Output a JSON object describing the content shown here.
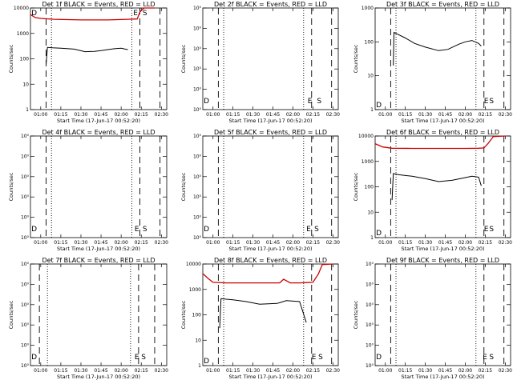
{
  "x_ticks": [
    "01:00",
    "01:15",
    "01:30",
    "01:45",
    "02:00",
    "02:15",
    "02:30"
  ],
  "xlabel": "Start Time (17-Jun-17 00:52:20)",
  "ylabel": "Counts/sec",
  "colors": {
    "events": "#000000",
    "lld": "#cc0000"
  },
  "chart_data": [
    {
      "type": "line",
      "title": "Det 1f BLACK = Events, RED = LLD",
      "x_range": [
        "00:52:20",
        "02:34:00"
      ],
      "ylim": [
        1,
        10000
      ],
      "yscale": "log",
      "y_ticks": [
        "1",
        "10",
        "100",
        "1000",
        "10000"
      ],
      "markers": [
        {
          "text": "D",
          "x": "00:53"
        },
        {
          "text": "E",
          "x": "02:09"
        },
        {
          "text": "S",
          "x": "02:16"
        }
      ],
      "dashed_lines": [
        "01:04",
        "02:14",
        "02:29"
      ],
      "dotted_lines": [
        "01:08",
        "02:08"
      ],
      "series": [
        {
          "color": "#000000",
          "x": [
            "01:04",
            "01:05",
            "01:09",
            "01:15",
            "01:25",
            "01:33",
            "01:40",
            "01:45",
            "01:50",
            "01:55",
            "02:00",
            "02:03",
            "02:05"
          ],
          "y": [
            60,
            280,
            270,
            260,
            240,
            190,
            195,
            210,
            230,
            250,
            260,
            240,
            230
          ]
        },
        {
          "color": "#cc0000",
          "x": [
            "00:52:20",
            "00:56",
            "01:00",
            "01:10",
            "01:30",
            "01:50",
            "02:05",
            "02:12",
            "02:14",
            "02:17",
            "02:20",
            "02:25"
          ],
          "y": [
            5500,
            4200,
            3900,
            3600,
            3400,
            3400,
            3600,
            3700,
            7000,
            10000,
            10000,
            10000
          ]
        }
      ]
    },
    {
      "type": "line",
      "title": "Det 2f BLACK = Events, RED = LLD",
      "x_range": [
        "00:52:20",
        "02:34:00"
      ],
      "ylim": [
        1,
        10
      ],
      "yscale": "log",
      "y_ticks": [
        "10⁰",
        "10⁰",
        "10⁰",
        "10⁰",
        "10⁰",
        "10⁰"
      ],
      "markers": [
        {
          "text": "D",
          "x": "00:53"
        },
        {
          "text": "E",
          "x": "02:11"
        },
        {
          "text": "S",
          "x": "02:18"
        }
      ],
      "dashed_lines": [
        "01:04",
        "02:14",
        "02:29"
      ],
      "dotted_lines": [
        "01:08",
        "02:08"
      ],
      "series": []
    },
    {
      "type": "line",
      "title": "Det 3f BLACK = Events, RED = LLD",
      "x_range": [
        "00:52:20",
        "02:34:00"
      ],
      "ylim": [
        1,
        1000
      ],
      "yscale": "log",
      "y_ticks": [
        "1",
        "10",
        "100",
        "1000"
      ],
      "markers": [
        {
          "text": "D",
          "x": "00:53"
        },
        {
          "text": "E",
          "x": "02:14"
        },
        {
          "text": "S",
          "x": "02:18"
        }
      ],
      "dashed_lines": [
        "01:04",
        "02:14",
        "02:29"
      ],
      "dotted_lines": [
        "01:08",
        "02:08"
      ],
      "series": [
        {
          "color": "#000000",
          "x": [
            "01:06",
            "01:06:30",
            "01:09",
            "01:15",
            "01:22",
            "01:30",
            "01:40",
            "01:47",
            "01:55",
            "02:00",
            "02:05",
            "02:10",
            "02:12"
          ],
          "y": [
            20,
            190,
            170,
            130,
            90,
            70,
            55,
            60,
            85,
            100,
            110,
            90,
            75
          ]
        }
      ]
    },
    {
      "type": "line",
      "title": "Det 4f BLACK = Events, RED = LLD",
      "x_range": [
        "00:52:20",
        "02:34:00"
      ],
      "ylim": [
        1,
        10
      ],
      "yscale": "log",
      "y_ticks": [
        "10⁰",
        "10⁰",
        "10⁰",
        "10⁰",
        "10⁰",
        "10⁰"
      ],
      "markers": [
        {
          "text": "D",
          "x": "00:53"
        },
        {
          "text": "E",
          "x": "02:10"
        },
        {
          "text": "S",
          "x": "02:16"
        }
      ],
      "dashed_lines": [
        "01:04",
        "02:14",
        "02:29"
      ],
      "dotted_lines": [
        "01:08",
        "02:08"
      ],
      "series": []
    },
    {
      "type": "line",
      "title": "Det 5f BLACK = Events, RED = LLD",
      "x_range": [
        "00:52:20",
        "02:34:00"
      ],
      "ylim": [
        1,
        10
      ],
      "yscale": "log",
      "y_ticks": [
        "10⁰",
        "10⁰",
        "10⁰",
        "10⁰",
        "10⁰",
        "10⁰"
      ],
      "markers": [
        {
          "text": "D",
          "x": "00:53"
        },
        {
          "text": "E",
          "x": "02:10"
        },
        {
          "text": "S",
          "x": "02:16"
        }
      ],
      "dashed_lines": [
        "01:04",
        "02:14",
        "02:29"
      ],
      "dotted_lines": [
        "01:08",
        "02:08"
      ],
      "series": []
    },
    {
      "type": "line",
      "title": "Det 6f BLACK = Events, RED = LLD",
      "x_range": [
        "00:52:20",
        "02:34:00"
      ],
      "ylim": [
        1,
        10000
      ],
      "yscale": "log",
      "y_ticks": [
        "1",
        "10",
        "100",
        "1000",
        "10000"
      ],
      "markers": [
        {
          "text": "D",
          "x": "00:53"
        },
        {
          "text": "E",
          "x": "02:14"
        },
        {
          "text": "S",
          "x": "02:18"
        }
      ],
      "dashed_lines": [
        "01:04",
        "02:14",
        "02:29"
      ],
      "dotted_lines": [
        "01:08",
        "02:08"
      ],
      "series": [
        {
          "color": "#000000",
          "x": [
            "01:05",
            "01:06",
            "01:10",
            "01:20",
            "01:30",
            "01:40",
            "01:50",
            "02:00",
            "02:05",
            "02:10",
            "02:12"
          ],
          "y": [
            30,
            330,
            300,
            260,
            210,
            160,
            180,
            230,
            260,
            240,
            110
          ]
        },
        {
          "color": "#cc0000",
          "x": [
            "00:52:20",
            "00:58",
            "01:05",
            "01:20",
            "01:40",
            "02:00",
            "02:10",
            "02:14",
            "02:17",
            "02:21",
            "02:30"
          ],
          "y": [
            5000,
            3700,
            3300,
            3250,
            3250,
            3250,
            3300,
            3400,
            5000,
            9500,
            10000
          ]
        }
      ]
    },
    {
      "type": "line",
      "title": "Det 7f BLACK = Events, RED = LLD",
      "x_range": [
        "00:52:20",
        "02:34:00"
      ],
      "ylim": [
        1,
        10
      ],
      "yscale": "log",
      "y_ticks": [
        "10⁰",
        "10⁰",
        "10⁰",
        "10⁰",
        "10⁰",
        "10⁰"
      ],
      "markers": [
        {
          "text": "D",
          "x": "00:53"
        },
        {
          "text": "E",
          "x": "02:10"
        },
        {
          "text": "S",
          "x": "02:15"
        }
      ],
      "dashed_lines": [
        "00:59",
        "02:13",
        "02:25"
      ],
      "dotted_lines": [
        "01:05",
        "02:07"
      ],
      "series": []
    },
    {
      "type": "line",
      "title": "Det 8f BLACK = Events, RED = LLD",
      "x_range": [
        "00:52:20",
        "02:34:00"
      ],
      "ylim": [
        1,
        10000
      ],
      "yscale": "log",
      "y_ticks": [
        "1",
        "10",
        "100",
        "1000",
        "10000"
      ],
      "markers": [
        {
          "text": "D",
          "x": "00:53"
        },
        {
          "text": "E",
          "x": "02:14"
        },
        {
          "text": "S",
          "x": "02:19"
        }
      ],
      "dashed_lines": [
        "01:04",
        "02:14",
        "02:29"
      ],
      "dotted_lines": [
        "01:08",
        "02:08"
      ],
      "series": [
        {
          "color": "#000000",
          "x": [
            "01:05",
            "01:06",
            "01:15",
            "01:25",
            "01:35",
            "01:48",
            "01:50",
            "01:55",
            "02:05",
            "02:10"
          ],
          "y": [
            30,
            430,
            390,
            330,
            260,
            280,
            300,
            360,
            330,
            50
          ]
        },
        {
          "color": "#cc0000",
          "x": [
            "00:52:20",
            "00:56",
            "01:00",
            "01:10",
            "01:50",
            "01:53",
            "01:58",
            "02:05",
            "02:15",
            "02:19",
            "02:22",
            "02:30"
          ],
          "y": [
            4200,
            2800,
            1900,
            1800,
            1800,
            2500,
            1800,
            1800,
            1900,
            4000,
            9500,
            10000
          ]
        }
      ]
    },
    {
      "type": "line",
      "title": "Det 9f BLACK = Events, RED = LLD",
      "x_range": [
        "00:52:20",
        "02:34:00"
      ],
      "ylim": [
        1,
        10
      ],
      "yscale": "log",
      "y_ticks": [
        "10⁰",
        "10⁰",
        "10⁰",
        "10⁰",
        "10⁰",
        "10⁰"
      ],
      "markers": [
        {
          "text": "D",
          "x": "00:53"
        },
        {
          "text": "E",
          "x": "02:13"
        },
        {
          "text": "S",
          "x": "02:18"
        }
      ],
      "dashed_lines": [
        "01:04",
        "02:14",
        "02:29"
      ],
      "dotted_lines": [
        "01:08",
        "02:08"
      ],
      "series": []
    }
  ]
}
